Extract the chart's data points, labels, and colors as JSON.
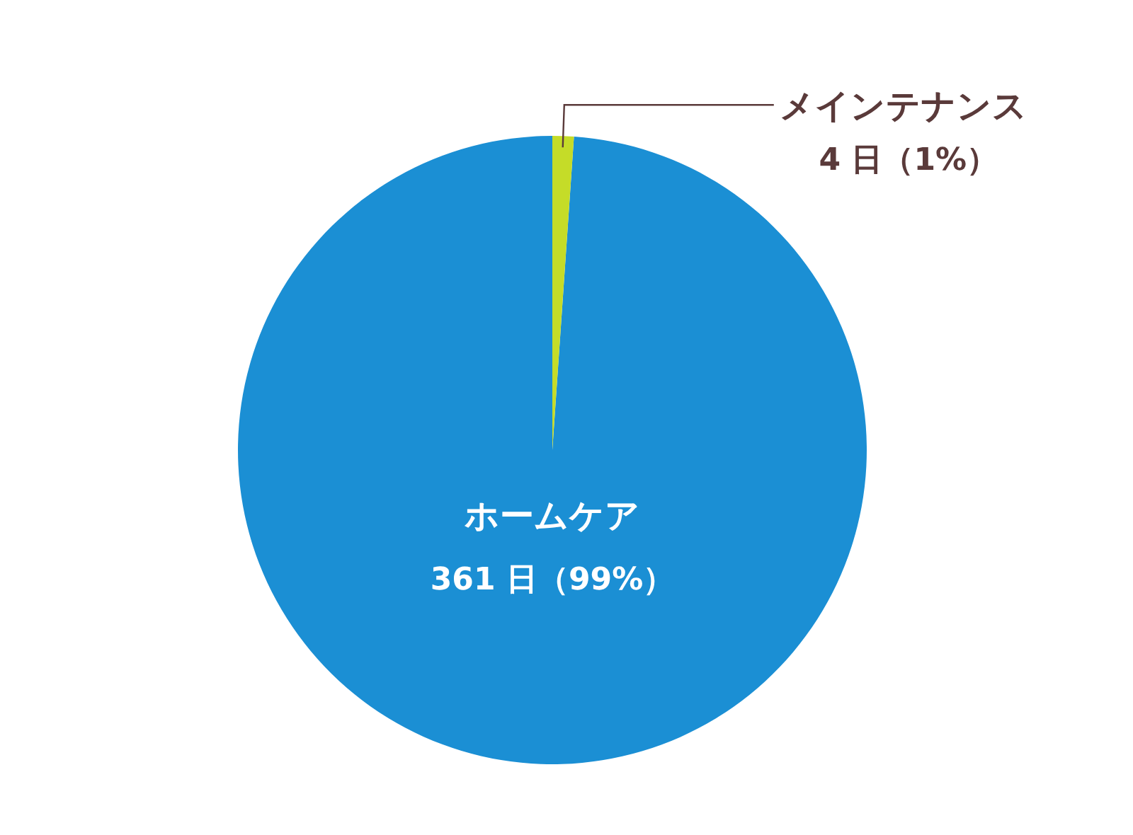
{
  "chart_data": {
    "type": "pie",
    "categories": [
      "ホームケア",
      "メインテナンス"
    ],
    "values": [
      361,
      4
    ],
    "colors": [
      "#1b8fd4",
      "#c5dc28"
    ],
    "value_labels": [
      "361 日（99%）",
      "4 日（1%）"
    ],
    "legend": false
  }
}
